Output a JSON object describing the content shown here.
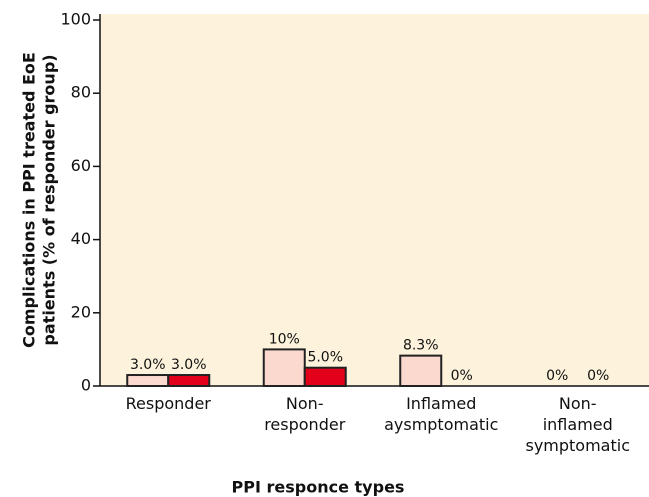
{
  "chart_data": {
    "type": "bar",
    "y_label": [
      "Complications in PPI treated EoE",
      "patients (% of responder group)"
    ],
    "x_label": "PPI responce types",
    "categories": [
      [
        "Responder"
      ],
      [
        "Non-",
        "responder"
      ],
      [
        "Inflamed",
        "aysmptomatic"
      ],
      [
        "Non-",
        "inflamed",
        "symptomatic"
      ]
    ],
    "series": [
      {
        "color": "#fcd9cf",
        "values": [
          3.0,
          10,
          8.3,
          0
        ],
        "value_labels": [
          "3.0%",
          "10%",
          "8.3%",
          "0%"
        ]
      },
      {
        "color": "#e2001a",
        "values": [
          3.0,
          5.0,
          0,
          0
        ],
        "value_labels": [
          "3.0%",
          "5.0%",
          "0%",
          "0%"
        ]
      }
    ],
    "ylim": [
      0,
      100
    ],
    "yticks": [
      0,
      20,
      40,
      60,
      80,
      100
    ],
    "background": "#fdf3dc"
  }
}
